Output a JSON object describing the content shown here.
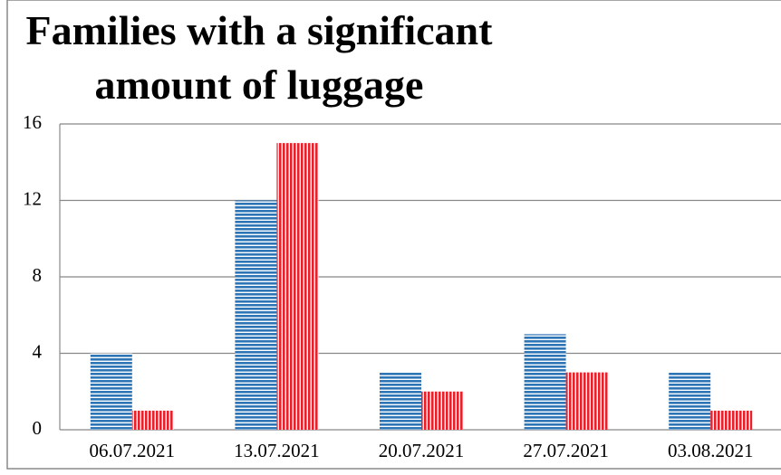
{
  "chart_data": {
    "type": "bar",
    "title": "Families with a significant amount of luggage",
    "categories": [
      "06.07.2021",
      "13.07.2021",
      "20.07.2021",
      "27.07.2021",
      "03.08.2021"
    ],
    "series": [
      {
        "color": "#2e75b6",
        "pattern": "horizontal",
        "values": [
          4,
          12,
          3,
          5,
          3
        ]
      },
      {
        "color": "#e8202a",
        "pattern": "vertical",
        "values": [
          1,
          15,
          2,
          3,
          1
        ]
      }
    ],
    "ylim": [
      0,
      16
    ],
    "yticks": [
      0,
      4,
      8,
      12,
      16
    ],
    "grid": true
  }
}
